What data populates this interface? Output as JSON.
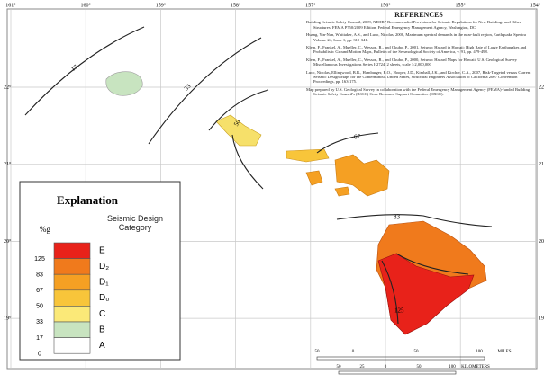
{
  "map": {
    "longitudes": [
      "161°",
      "160°",
      "159°",
      "158°",
      "157°",
      "156°",
      "155°",
      "154°"
    ],
    "latitudes": [
      "22°",
      "21°",
      "20°",
      "19°"
    ],
    "contours": [
      "17",
      "33",
      "50",
      "67",
      "83",
      "125"
    ]
  },
  "references": {
    "title": "REFERENCES",
    "items": [
      "Building Seismic Safety Council, 2009, NEHRP Recommended Provisions for Seismic Regulations for New Buildings and Other Structures: FEMA P750/2009 Edition, Federal Emergency Management Agency, Washington, DC",
      "Huang, Yin-Nan, Whittaker, A.S., and Luco, Nicolas, 2008, Maximum spectral demands in the near-fault region, Earthquake Spectra Volume 24, Issue 1, pp. 319-341.",
      "Klein, F., Frankel, A., Mueller, C., Wesson, R., and Okubo, P., 2001, Seismic Hazard in Hawaii: High Rate of Large Earthquakes and Probabilistic Ground Motion Maps, Bulletin of the Seismological Society of America, v. 91, pp. 479-498.",
      "Klein, F., Frankel, A., Mueller, C., Wesson, R., and Okubo, P., 2000, Seismic Hazard Maps for Hawaii: U.S. Geological Survey Miscellaneous Investigations Series I-2724, 2 sheets, scale 1:2,000,000",
      "Luco, Nicolas, Ellingwood, B.R., Hamburger, R.O., Hooper, J.D., Kimball, J.K., and Kircher, C.A., 2007, Risk-Targeted versus Current Seismic Design Maps for the Conterminous United States, Structural Engineers Association of California 2007 Convention Proceedings, pp. 163-175.",
      "Map prepared by U.S. Geological Survey in collaboration with the Federal Emergency Management Agency (FEMA)-funded Building Seismic Safety Council's (BSSC) Code Resource Support Committee (CRSC)."
    ]
  },
  "legend": {
    "title": "Explanation",
    "percent_label": "%g",
    "category_title": "Seismic Design Category",
    "values": [
      125,
      83,
      67,
      50,
      33,
      17,
      0
    ],
    "categories": [
      "E",
      "D₂",
      "D₁",
      "D₀",
      "C",
      "B",
      "A"
    ]
  },
  "scale": {
    "miles": [
      "50",
      "0",
      "50",
      "100",
      "MILES"
    ],
    "kilometers": [
      "50",
      "25",
      "0",
      "50",
      "100",
      "KILOMETERS"
    ]
  }
}
